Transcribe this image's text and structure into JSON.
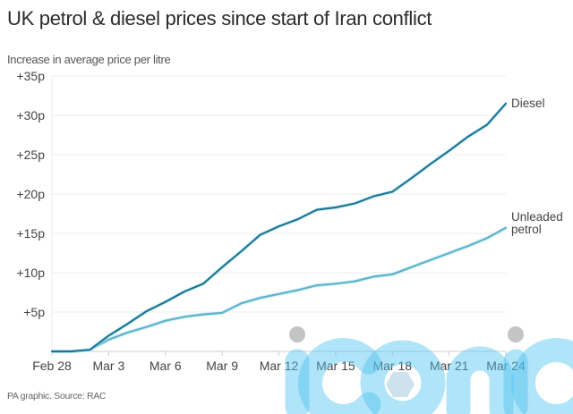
{
  "chart_data": {
    "type": "line",
    "title": "UK petrol & diesel prices since start of Iran conflict",
    "subtitle": "Increase in average price per litre",
    "xlabel": "",
    "ylabel": "Increase in average price per litre",
    "ylim": [
      0,
      35
    ],
    "yticks": [
      5,
      10,
      15,
      20,
      25,
      30,
      35
    ],
    "ytick_labels": [
      "+5p",
      "+10p",
      "+15p",
      "+20p",
      "+25p",
      "+30p",
      "+35p"
    ],
    "x": [
      "Feb 28",
      "Mar 1",
      "Mar 2",
      "Mar 3",
      "Mar 4",
      "Mar 5",
      "Mar 6",
      "Mar 7",
      "Mar 8",
      "Mar 9",
      "Mar 10",
      "Mar 11",
      "Mar 12",
      "Mar 13",
      "Mar 14",
      "Mar 15",
      "Mar 16",
      "Mar 17",
      "Mar 18",
      "Mar 19",
      "Mar 20",
      "Mar 21",
      "Mar 22",
      "Mar 23",
      "Mar 24"
    ],
    "xticks": [
      "Feb 28",
      "Mar 3",
      "Mar 6",
      "Mar 9",
      "Mar 12",
      "Mar 15",
      "Mar 18",
      "Mar 21",
      "Mar 24"
    ],
    "grid": true,
    "legend": "inline-right",
    "series": [
      {
        "name": "Diesel",
        "label_lines": [
          "Diesel"
        ],
        "color": "#1f7691",
        "values": [
          0,
          0,
          0.2,
          2.0,
          3.5,
          5.1,
          6.3,
          7.6,
          8.6,
          10.7,
          12.7,
          14.8,
          15.9,
          16.8,
          18.0,
          18.3,
          18.8,
          19.7,
          20.3,
          22.0,
          23.8,
          25.5,
          27.3,
          28.8,
          31.5
        ]
      },
      {
        "name": "Unleaded petrol",
        "label_lines": [
          "Unleaded",
          "petrol"
        ],
        "color": "#5fb2c7",
        "values": [
          0,
          0,
          0.2,
          1.5,
          2.4,
          3.1,
          3.9,
          4.4,
          4.7,
          4.9,
          6.1,
          6.8,
          7.3,
          7.8,
          8.4,
          8.6,
          8.9,
          9.5,
          9.8,
          10.7,
          11.6,
          12.5,
          13.4,
          14.4,
          15.7
        ]
      }
    ]
  },
  "footer": {
    "source": "PA graphic. Source: RAC"
  },
  "watermark": {
    "text": "iconic"
  }
}
